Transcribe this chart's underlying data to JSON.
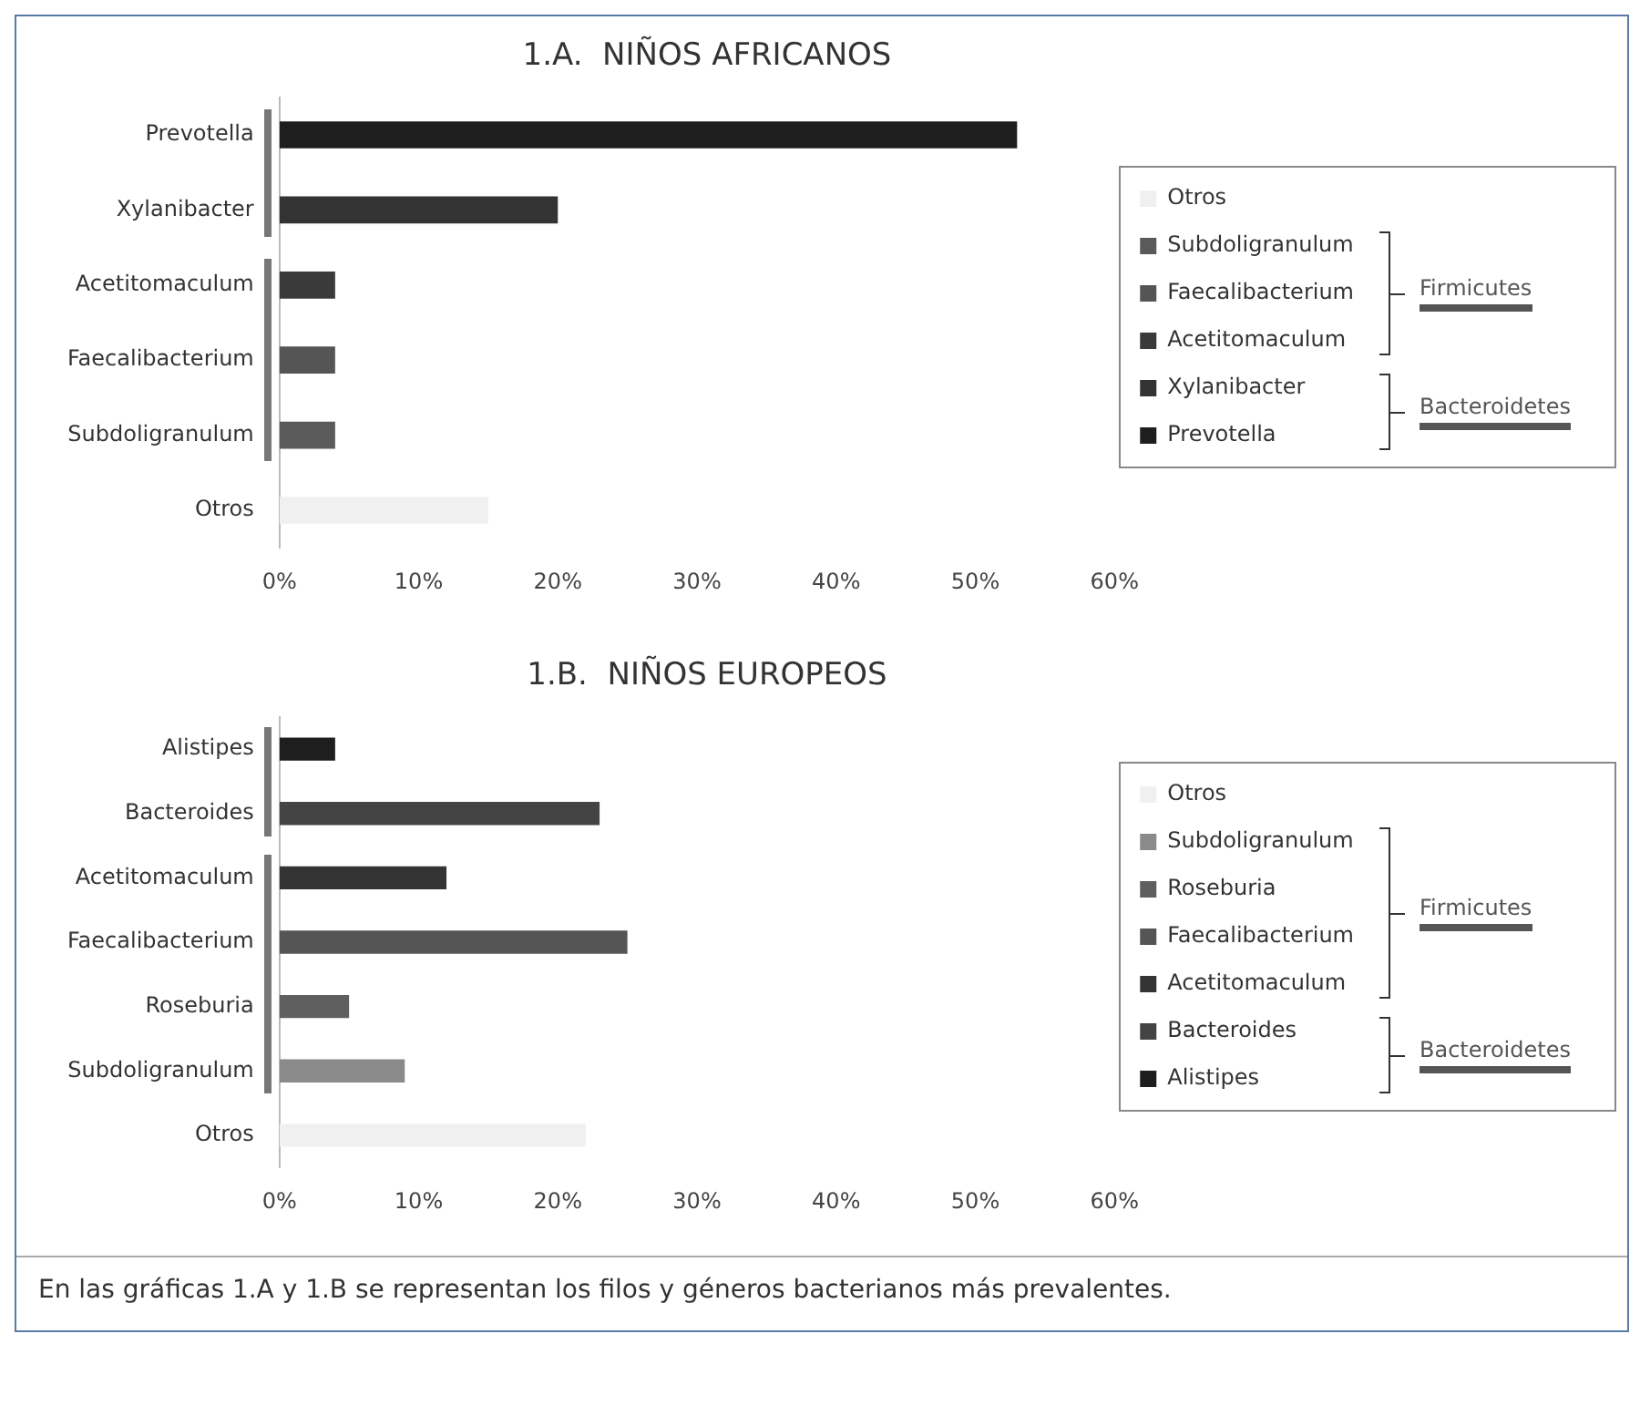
{
  "chart_data": [
    {
      "type": "bar",
      "orientation": "horizontal",
      "title": "1.A.  NIÑOS AFRICANOS",
      "categories": [
        "Prevotella",
        "Xylanibacter",
        "Acetitomaculum",
        "Faecalibacterium",
        "Subdoligranulum",
        "Otros"
      ],
      "series": [
        {
          "name": "Prevotella",
          "color": "#1e1e1e",
          "values": [
            53,
            null,
            null,
            null,
            null,
            null
          ]
        },
        {
          "name": "Xylanibacter",
          "color": "#333333",
          "values": [
            null,
            20,
            null,
            null,
            null,
            null
          ]
        },
        {
          "name": "Acetitomaculum",
          "color": "#3a3a3a",
          "values": [
            null,
            null,
            4,
            null,
            null,
            null
          ]
        },
        {
          "name": "Faecalibacterium",
          "color": "#555555",
          "values": [
            null,
            null,
            null,
            4,
            null,
            null
          ]
        },
        {
          "name": "Subdoligranulum",
          "color": "#5a5a5a",
          "values": [
            null,
            null,
            null,
            null,
            4,
            null
          ]
        },
        {
          "name": "Otros",
          "color": "#f0f0f0",
          "values": [
            null,
            null,
            null,
            null,
            null,
            15
          ]
        }
      ],
      "xlim": [
        0,
        60
      ],
      "xticks": [
        {
          "value": 0,
          "label": "0%"
        },
        {
          "value": 10,
          "label": "10%"
        },
        {
          "value": 20,
          "label": "20%"
        },
        {
          "value": 30,
          "label": "30%"
        },
        {
          "value": 40,
          "label": "40%"
        },
        {
          "value": 50,
          "label": "50%"
        },
        {
          "value": 60,
          "label": "60%"
        }
      ],
      "grid": false,
      "legend": "right",
      "annotations": [
        "Firmicutes",
        "Bacteroidetes"
      ]
    },
    {
      "type": "bar",
      "orientation": "horizontal",
      "title": "1.B.  NIÑOS EUROPEOS",
      "categories": [
        "Alistipes",
        "Bacteroides",
        "Acetitomaculum",
        "Faecalibacterium",
        "Roseburia",
        "Subdoligranulum",
        "Otros"
      ],
      "series": [
        {
          "name": "Alistipes",
          "color": "#1e1e1e",
          "values": [
            4,
            null,
            null,
            null,
            null,
            null,
            null
          ]
        },
        {
          "name": "Bacteroides",
          "color": "#444444",
          "values": [
            null,
            23,
            null,
            null,
            null,
            null,
            null
          ]
        },
        {
          "name": "Acetitomaculum",
          "color": "#333333",
          "values": [
            null,
            null,
            12,
            null,
            null,
            null,
            null
          ]
        },
        {
          "name": "Faecalibacterium",
          "color": "#555555",
          "values": [
            null,
            null,
            null,
            25,
            null,
            null,
            null
          ]
        },
        {
          "name": "Roseburia",
          "color": "#5f5f5f",
          "values": [
            null,
            null,
            null,
            null,
            5,
            null,
            null
          ]
        },
        {
          "name": "Subdoligranulum",
          "color": "#8a8a8a",
          "values": [
            null,
            null,
            null,
            null,
            null,
            9,
            null
          ]
        },
        {
          "name": "Otros",
          "color": "#f0f0f0",
          "values": [
            null,
            null,
            null,
            null,
            null,
            null,
            22
          ]
        }
      ],
      "xlim": [
        0,
        60
      ],
      "xticks": [
        {
          "value": 0,
          "label": "0%"
        },
        {
          "value": 10,
          "label": "10%"
        },
        {
          "value": 20,
          "label": "20%"
        },
        {
          "value": 30,
          "label": "30%"
        },
        {
          "value": 40,
          "label": "40%"
        },
        {
          "value": 50,
          "label": "50%"
        },
        {
          "value": 60,
          "label": "60%"
        }
      ],
      "grid": false,
      "legend": "right",
      "annotations": [
        "Firmicutes",
        "Bacteroidetes",
        "En las gráficas 1.A y 1.B se representan los filos y géneros bacterianos más prevalentes."
      ]
    }
  ]
}
